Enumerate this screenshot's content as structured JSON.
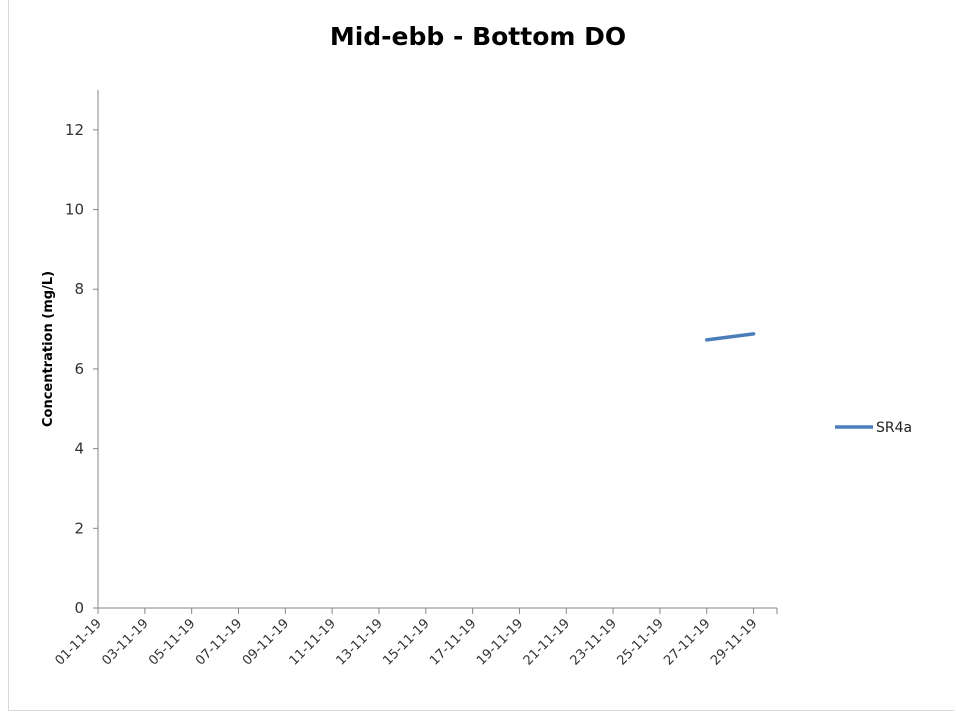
{
  "chart_data": {
    "type": "line",
    "title": "Mid-ebb - Bottom DO",
    "xlabel": "",
    "ylabel": "Concentration (mg/L)",
    "ylim": [
      0,
      13
    ],
    "yticks": [
      0,
      2,
      4,
      6,
      8,
      10,
      12
    ],
    "categories": [
      "01-11-19",
      "03-11-19",
      "05-11-19",
      "07-11-19",
      "09-11-19",
      "11-11-19",
      "13-11-19",
      "15-11-19",
      "17-11-19",
      "19-11-19",
      "21-11-19",
      "23-11-19",
      "25-11-19",
      "27-11-19",
      "29-11-19"
    ],
    "xlim": [
      "01-11-19",
      "30-11-19"
    ],
    "grid": false,
    "legend": "right",
    "series": [
      {
        "name": "SR4a",
        "color": "#4a7ebb",
        "points": [
          {
            "x": "27-11-19",
            "y": 6.73
          },
          {
            "x": "29-11-19",
            "y": 6.88
          }
        ]
      }
    ]
  }
}
